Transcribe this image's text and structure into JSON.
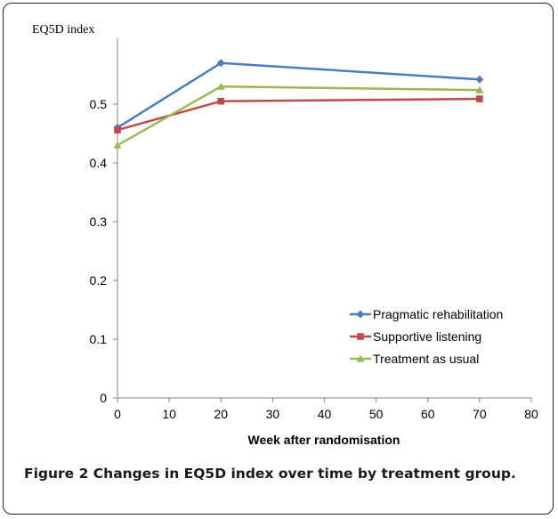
{
  "figure": {
    "caption_label": "Figure 2",
    "caption_text": "Changes in EQ5D index over time by treatment group."
  },
  "chart_data": {
    "type": "line",
    "title": "",
    "ylabel": "EQ5D index",
    "xlabel": "Week after randomisation",
    "xlim": [
      0,
      80
    ],
    "ylim": [
      0,
      0.6
    ],
    "x_ticks": [
      0,
      10,
      20,
      30,
      40,
      50,
      60,
      70,
      80
    ],
    "y_ticks": [
      0,
      0.1,
      0.2,
      0.3,
      0.4,
      0.5
    ],
    "y_tick_labels": [
      "0",
      "0.1",
      "0.2",
      "0.3",
      "0.4",
      "0.5"
    ],
    "grid": false,
    "legend_position": "lower-right",
    "series": [
      {
        "name": "Pragmatic rehabilitation",
        "color": "#4a7ebb",
        "marker": "diamond",
        "x": [
          0,
          20,
          70
        ],
        "y": [
          0.46,
          0.57,
          0.542
        ]
      },
      {
        "name": "Supportive listening",
        "color": "#be4b48",
        "marker": "square",
        "x": [
          0,
          20,
          70
        ],
        "y": [
          0.456,
          0.505,
          0.509
        ]
      },
      {
        "name": "Treatment as usual",
        "color": "#98b954",
        "marker": "triangle",
        "x": [
          0,
          20,
          70
        ],
        "y": [
          0.43,
          0.53,
          0.524
        ]
      }
    ]
  }
}
